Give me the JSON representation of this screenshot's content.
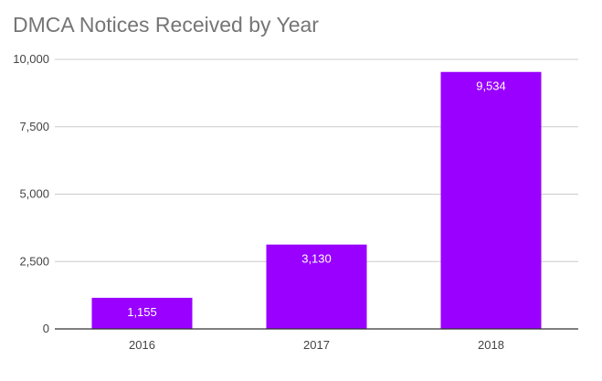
{
  "chart_data": {
    "type": "bar",
    "title": "DMCA Notices Received by Year",
    "categories": [
      "2016",
      "2017",
      "2018"
    ],
    "values": [
      1155,
      3130,
      9534
    ],
    "value_labels": [
      "1,155",
      "3,130",
      "9,534"
    ],
    "ylim": [
      0,
      10000
    ],
    "y_ticks": [
      0,
      2500,
      5000,
      7500,
      10000
    ],
    "y_tick_labels": [
      "0",
      "2,500",
      "5,000",
      "7,500",
      "10,000"
    ],
    "xlabel": "",
    "ylabel": "",
    "grid": true,
    "legend": "none",
    "colors": {
      "bar": "#9900ff",
      "grid": "#cccccc",
      "axis": "#333333"
    }
  }
}
